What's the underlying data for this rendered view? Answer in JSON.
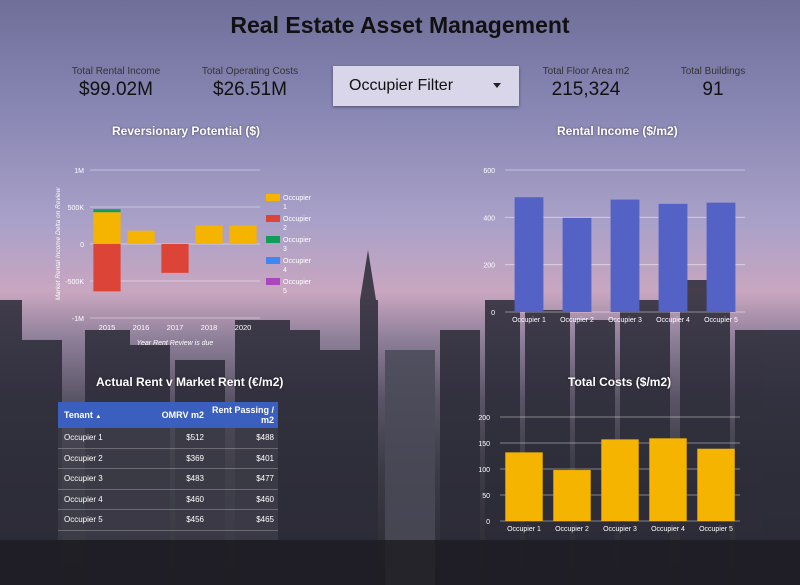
{
  "title": "Real Estate Asset Management",
  "kpis": {
    "rental_income": {
      "label": "Total Rental Income",
      "value": "$99.02M"
    },
    "operating_costs": {
      "label": "Total Operating Costs",
      "value": "$26.51M"
    },
    "floor_area": {
      "label": "Total Floor Area m2",
      "value": "215,324"
    },
    "buildings": {
      "label": "Total Buildings",
      "value": "91"
    }
  },
  "filter": {
    "label": "Occupier Filter"
  },
  "table": {
    "title": "Actual Rent v Market Rent (€/m2)",
    "headers": [
      "Tenant",
      "OMRV m2",
      "Rent Passing / m2"
    ],
    "sort_icon": "sort-ascending-icon",
    "rows": [
      [
        "Occupier 1",
        "$512",
        "$488"
      ],
      [
        "Occupier 2",
        "$369",
        "$401"
      ],
      [
        "Occupier 3",
        "$483",
        "$477"
      ],
      [
        "Occupier 4",
        "$460",
        "$460"
      ],
      [
        "Occupier 5",
        "$456",
        "$465"
      ]
    ]
  },
  "chart_data": [
    {
      "type": "bar",
      "title": "Reversionary Potential ($)",
      "xlabel": "Year Rent Review is due",
      "ylabel": "Market Rental Income Delta on Review",
      "categories": [
        "2015",
        "2016",
        "2017",
        "2018",
        "2020"
      ],
      "y_ticks": [
        "1M",
        "500K",
        "0",
        "-500K",
        "-1M"
      ],
      "ylim": [
        -1000000,
        1000000
      ],
      "stacked": true,
      "legend_position": "right",
      "series": [
        {
          "name": "Occupier 1",
          "color": "#f4b400",
          "values": [
            430000,
            180000,
            0,
            250000,
            250000
          ]
        },
        {
          "name": "Occupier 2",
          "color": "#db4437",
          "values": [
            -640000,
            0,
            -390000,
            0,
            0
          ]
        },
        {
          "name": "Occupier 3",
          "color": "#0f9d58",
          "values": [
            40000,
            0,
            0,
            0,
            0
          ]
        },
        {
          "name": "Occupier 4",
          "color": "#4285f4",
          "values": [
            0,
            0,
            0,
            0,
            0
          ]
        },
        {
          "name": "Occupier 5",
          "color": "#ab47bc",
          "values": [
            0,
            0,
            0,
            0,
            0
          ]
        }
      ]
    },
    {
      "type": "bar",
      "title": "Rental Income ($/m2)",
      "categories": [
        "Occupier 1",
        "Occupier 2",
        "Occupier 3",
        "Occupier 4",
        "Occupier 5"
      ],
      "values": [
        485,
        398,
        475,
        457,
        462
      ],
      "y_ticks": [
        "600",
        "400",
        "200",
        "0"
      ],
      "ylim": [
        0,
        600
      ],
      "color": "#5462c6"
    },
    {
      "type": "bar",
      "title": "Total Costs ($/m2)",
      "categories": [
        "Occupier 1",
        "Occupier 2",
        "Occupier 3",
        "Occupier 4",
        "Occupier 5"
      ],
      "values": [
        132,
        98,
        157,
        159,
        139
      ],
      "y_ticks": [
        "200",
        "150",
        "100",
        "50",
        "0"
      ],
      "ylim": [
        0,
        200
      ],
      "color": "#f4b400"
    }
  ]
}
